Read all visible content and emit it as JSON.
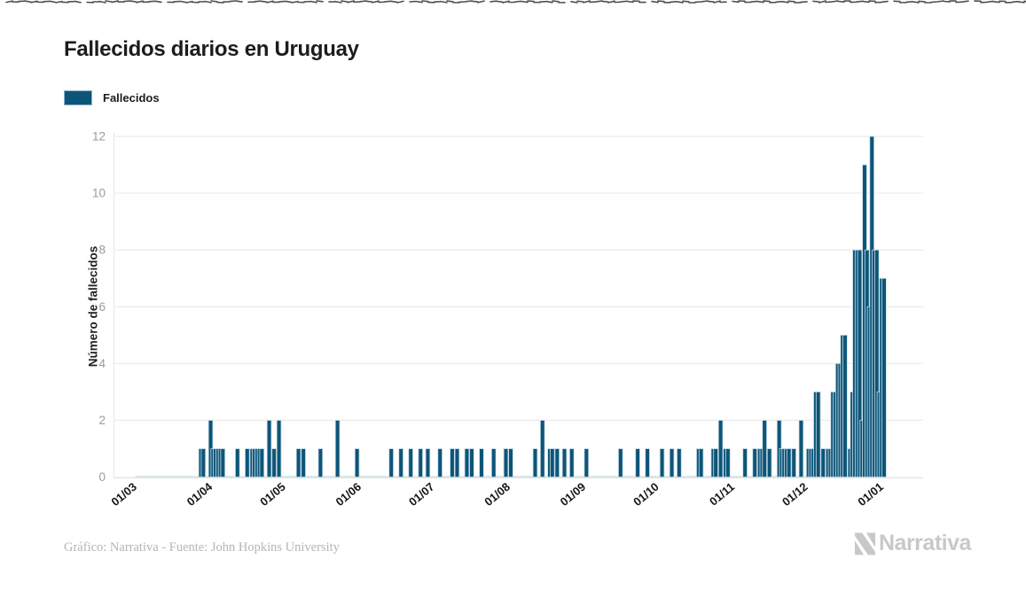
{
  "header": {
    "title": "Fallecidos diarios en Uruguay"
  },
  "legend": {
    "label": "Fallecidos",
    "swatch_color": "#0d5578"
  },
  "footer": {
    "credit": "Gráfico: Narrativa - Fuente: John Hopkins University",
    "brand": "Narrativa"
  },
  "icons": {
    "torn_edge": "torn-edge-line",
    "logo": "narrativa-n-icon"
  },
  "chart_data": {
    "type": "bar",
    "title": "Fallecidos diarios en Uruguay",
    "xlabel": "",
    "ylabel": "Número de fallecidos",
    "series_name": "Fallecidos",
    "bar_color": "#0d5578",
    "bar_stroke": "#c9dde8",
    "grid": true,
    "legend_position": "top-left",
    "ylim": [
      0,
      12
    ],
    "yticks": [
      0,
      2,
      4,
      6,
      8,
      10,
      12
    ],
    "xtick_labels": [
      "01/03",
      "01/04",
      "01/05",
      "01/06",
      "01/07",
      "01/08",
      "01/09",
      "01/10",
      "01/11",
      "01/12",
      "01/01"
    ],
    "xtick_day_index": [
      0,
      31,
      61,
      92,
      122,
      153,
      184,
      214,
      245,
      275,
      306
    ],
    "start_tick": "01/03",
    "num_days": 307,
    "daily_values_nonzero": {
      "26": 1,
      "27": 1,
      "30": 2,
      "31": 1,
      "32": 1,
      "33": 1,
      "34": 1,
      "35": 1,
      "41": 1,
      "45": 1,
      "47": 1,
      "48": 1,
      "49": 1,
      "50": 1,
      "51": 1,
      "54": 2,
      "56": 1,
      "58": 2,
      "66": 1,
      "68": 1,
      "75": 1,
      "82": 2,
      "90": 1,
      "104": 1,
      "108": 1,
      "112": 1,
      "116": 1,
      "119": 1,
      "124": 1,
      "129": 1,
      "131": 1,
      "135": 1,
      "137": 1,
      "141": 1,
      "146": 1,
      "151": 1,
      "153": 1,
      "163": 1,
      "166": 2,
      "169": 1,
      "170": 1,
      "172": 1,
      "175": 1,
      "178": 1,
      "184": 1,
      "198": 1,
      "205": 1,
      "209": 1,
      "215": 1,
      "219": 1,
      "222": 1,
      "230": 1,
      "231": 1,
      "236": 1,
      "237": 1,
      "239": 2,
      "241": 1,
      "242": 1,
      "249": 1,
      "253": 1,
      "255": 1,
      "256": 1,
      "257": 2,
      "259": 1,
      "263": 2,
      "264": 1,
      "265": 1,
      "266": 1,
      "267": 1,
      "269": 1,
      "272": 2,
      "275": 1,
      "276": 1,
      "277": 1,
      "278": 3,
      "279": 3,
      "281": 1,
      "283": 1,
      "284": 1,
      "285": 3,
      "286": 3,
      "287": 4,
      "288": 4,
      "289": 5,
      "290": 5,
      "292": 1,
      "293": 3,
      "294": 8,
      "295": 8,
      "296": 8,
      "297": 2,
      "298": 11,
      "299": 8,
      "300": 6,
      "301": 12,
      "302": 8,
      "303": 8,
      "304": 3,
      "305": 7,
      "306": 7
    }
  }
}
